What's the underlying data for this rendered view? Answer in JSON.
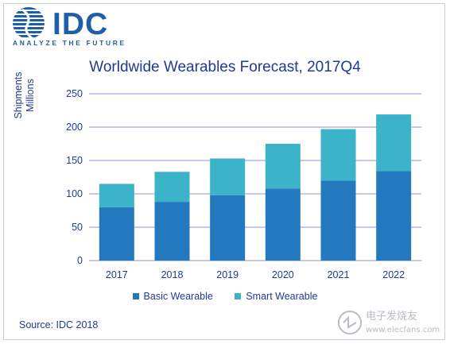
{
  "logo": {
    "brand": "IDC",
    "tagline": "ANALYZE THE FUTURE"
  },
  "colors": {
    "basic": "#2478bd",
    "smart": "#3bb3c8",
    "text": "#1f3a93",
    "grid": "#6c6fc0"
  },
  "chart_data": {
    "type": "bar",
    "stacked": true,
    "title": "Worldwide Wearables Forecast, 2017Q4",
    "ylabel_lines": [
      "Shipments",
      "Millions"
    ],
    "categories": [
      "2017",
      "2018",
      "2019",
      "2020",
      "2021",
      "2022"
    ],
    "series": [
      {
        "name": "Basic Wearable",
        "values": [
          80,
          88,
          98,
          108,
          120,
          134
        ]
      },
      {
        "name": "Smart Wearable",
        "values": [
          35,
          45,
          55,
          67,
          77,
          85
        ]
      }
    ],
    "ylim": [
      0,
      250
    ],
    "yticks": [
      "0",
      "50",
      "100",
      "150",
      "200",
      "250"
    ],
    "grid": true,
    "legend_position": "bottom"
  },
  "source": "Source: IDC 2018",
  "watermark": {
    "text_cn": "电子发烧友",
    "text_url": "www.elecfans.com"
  }
}
